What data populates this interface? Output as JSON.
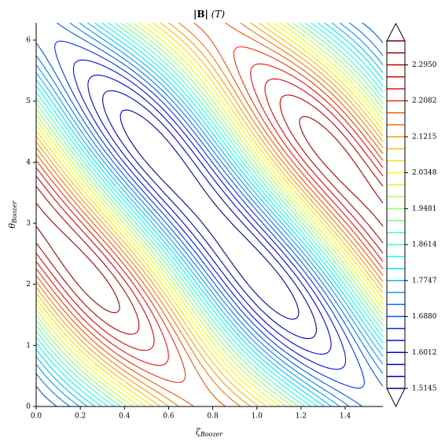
{
  "chart_data": {
    "type": "contour",
    "title": {
      "main": "|B|",
      "unit": "(T)"
    },
    "xlabel": {
      "symbol": "ζ",
      "subscript": "Boozer"
    },
    "ylabel": {
      "symbol": "θ",
      "subscript": "Boozer"
    },
    "xlim": [
      0,
      1.5708
    ],
    "ylim": [
      0,
      6.2832
    ],
    "xticks": [
      {
        "value": 0,
        "label": "0.0"
      },
      {
        "value": 0.2,
        "label": "0.2"
      },
      {
        "value": 0.4,
        "label": "0.4"
      },
      {
        "value": 0.6,
        "label": "0.6"
      },
      {
        "value": 0.8,
        "label": "0.8"
      },
      {
        "value": 1,
        "label": "1.0"
      },
      {
        "value": 1.2,
        "label": "1.2"
      },
      {
        "value": 1.4,
        "label": "1.4"
      }
    ],
    "yticks": [
      0,
      1,
      2,
      3,
      4,
      5,
      6
    ],
    "colormap": "jet",
    "levels": [
      1.5145,
      1.5434,
      1.5723,
      1.6012,
      1.6301,
      1.6591,
      1.688,
      1.7169,
      1.7458,
      1.7747,
      1.8036,
      1.8325,
      1.8614,
      1.8903,
      1.9192,
      1.9481,
      1.977,
      2.0059,
      2.0348,
      2.0637,
      2.0926,
      2.1215,
      2.1504,
      2.1793,
      2.2082,
      2.2372,
      2.2661,
      2.295,
      2.3239,
      2.3528
    ],
    "cbar_ticks": [
      1.5145,
      1.6012,
      {
        "value": 1.688,
        "label": "1.6880"
      },
      1.7747,
      1.8614,
      1.9481,
      2.0348,
      2.1215,
      2.2082,
      {
        "value": 2.295,
        "label": "2.2950"
      }
    ]
  }
}
